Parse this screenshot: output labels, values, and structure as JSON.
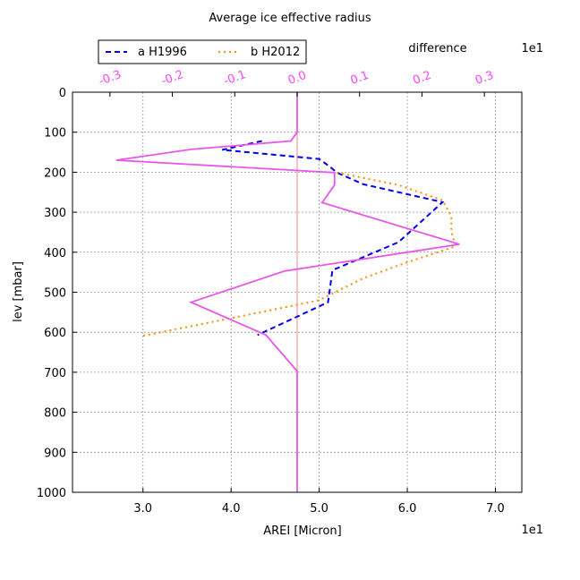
{
  "chart_data": {
    "type": "line",
    "title": "Average ice effective radius",
    "xlabel": "AREI [Micron]",
    "x_multiplier": "1e1",
    "xlim": [
      2.2,
      7.3
    ],
    "x_ticks": [
      3.0,
      4.0,
      5.0,
      6.0,
      7.0
    ],
    "x_tick_labels": [
      "3.0",
      "4.0",
      "5.0",
      "6.0",
      "7.0"
    ],
    "ylabel": "lev [mbar]",
    "ylim": [
      1000,
      0
    ],
    "y_ticks": [
      0,
      100,
      200,
      300,
      400,
      500,
      600,
      700,
      800,
      900,
      1000
    ],
    "y_tick_labels": [
      "0",
      "100",
      "200",
      "300",
      "400",
      "500",
      "600",
      "700",
      "800",
      "900",
      "1000"
    ],
    "grid": true,
    "legend_placement": "top-left",
    "secondary_x": {
      "label": "difference",
      "multiplier": "1e1",
      "color": "#ff44ff",
      "xlim": [
        -0.36,
        0.36
      ],
      "ticks": [
        -0.3,
        -0.2,
        -0.1,
        0.0,
        0.1,
        0.2,
        0.3
      ],
      "tick_labels": [
        "-0.3",
        "-0.2",
        "-0.1",
        "0.0",
        "0.1",
        "0.2",
        "0.3"
      ]
    },
    "series": [
      {
        "name": "a H1996",
        "color": "#0000ee",
        "style": "dashed",
        "axis": "primary",
        "points": [
          [
            4.35,
            122
          ],
          [
            3.9,
            144
          ],
          [
            5.0,
            167
          ],
          [
            5.12,
            186
          ],
          [
            5.2,
            201
          ],
          [
            5.5,
            230
          ],
          [
            6.4,
            275
          ],
          [
            5.9,
            375
          ],
          [
            5.15,
            445
          ],
          [
            5.1,
            525
          ],
          [
            4.3,
            607
          ]
        ]
      },
      {
        "name": "b H2012",
        "color": "#ff8c00",
        "style": "dotted",
        "axis": "primary",
        "points": [
          [
            5.2,
            201
          ],
          [
            5.9,
            232
          ],
          [
            6.4,
            270
          ],
          [
            6.5,
            310
          ],
          [
            6.5,
            350
          ],
          [
            6.55,
            385
          ],
          [
            6.0,
            425
          ],
          [
            5.5,
            465
          ],
          [
            5.0,
            520
          ],
          [
            4.45,
            545
          ],
          [
            3.0,
            609
          ]
        ]
      },
      {
        "name": "difference",
        "color": "#e957e9",
        "style": "solid",
        "axis": "secondary",
        "points": [
          [
            0.0,
            0
          ],
          [
            0.0,
            100
          ],
          [
            -0.01,
            122
          ],
          [
            -0.17,
            143
          ],
          [
            -0.29,
            170
          ],
          [
            0.06,
            201
          ],
          [
            0.06,
            232
          ],
          [
            0.04,
            276
          ],
          [
            0.26,
            380
          ],
          [
            -0.02,
            447
          ],
          [
            -0.17,
            525
          ],
          [
            -0.05,
            607
          ],
          [
            0.0,
            697
          ],
          [
            0.0,
            1000
          ]
        ]
      }
    ]
  }
}
